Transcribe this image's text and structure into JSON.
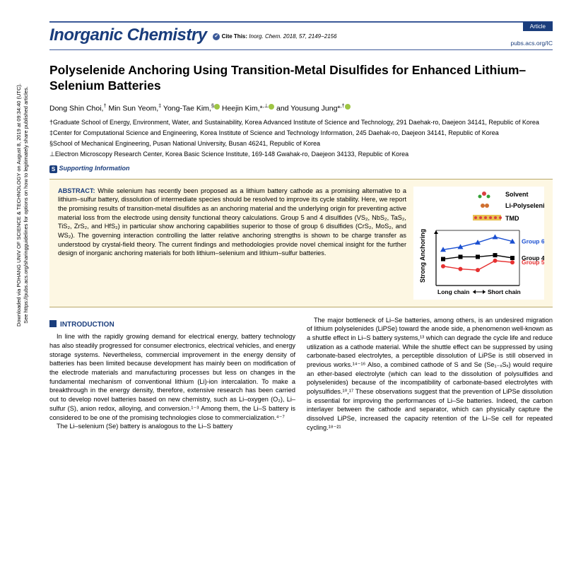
{
  "sidebar": {
    "line1": "Downloaded via POHANG UNIV OF SCIENCE & TECHNOLOGY on August 8, 2019 at 09:34:40 (UTC).",
    "line2": "See https://pubs.acs.org/sharingguidelines for options on how to legitimately share published articles."
  },
  "header": {
    "journal": "Inorganic Chemistry",
    "cite_label": "Cite This:",
    "cite_ref": "Inorg. Chem. 2018, 57, 2149−2156",
    "badge": "Article",
    "pubs_link": "pubs.acs.org/IC"
  },
  "title": "Polyselenide Anchoring Using Transition-Metal Disulfides for Enhanced Lithium–Selenium Batteries",
  "authors": "Dong Shin Choi,† Min Sun Yeom,‡ Yong-Tae Kim,§ Heejin Kim,*,⊥ and Yousung Jung*,†",
  "affiliations": [
    "†Graduate School of Energy, Environment, Water, and Sustainability, Korea Advanced Institute of Science and Technology, 291 Daehak-ro, Daejeon 34141, Republic of Korea",
    "‡Center for Computational Science and Engineering, Korea Institute of Science and Technology Information, 245 Daehak-ro, Daejeon 34141, Republic of Korea",
    "§School of Mechanical Engineering, Pusan National University, Busan 46241, Republic of Korea",
    "⊥Electron Microscopy Research Center, Korea Basic Science Institute, 169-148 Gwahak-ro, Daejeon 34133, Republic of Korea"
  ],
  "support_label": "Supporting Information",
  "abstract": {
    "label": "ABSTRACT:",
    "body": "While selenium has recently been proposed as a lithium battery cathode as a promising alternative to a lithium–sulfur battery, dissolution of intermediate species should be resolved to improve its cycle stability. Here, we report the promising results of transition-metal disulfides as an anchoring material and the underlying origin for preventing active material loss from the electrode using density functional theory calculations. Group 5 and 4 disulfides (VS₂, NbS₂, TaS₂, TiS₂, ZrS₂, and HfS₂) in particular show anchoring capabilities superior to those of group 6 disulfides (CrS₂, MoS₂, and WS₂). The governing interaction controlling the latter relative anchoring strengths is shown to be charge transfer as understood by crystal-field theory. The current findings and methodologies provide novel chemical insight for the further design of inorganic anchoring materials for both lithium–selenium and lithium–sulfur batteries."
  },
  "figure": {
    "legend": [
      "Solvent",
      "Li-Polyselenide",
      "TMD"
    ],
    "ylabel": "Strong Anchoring",
    "xlabel_left": "Long chain",
    "xlabel_right": "Short chain",
    "series": [
      {
        "name": "Group 6",
        "color": "#1a4fd1",
        "marker": "triangle",
        "y": [
          0.65,
          0.7,
          0.78,
          0.88,
          0.8
        ]
      },
      {
        "name": "Group 4",
        "color": "#000000",
        "marker": "square",
        "y": [
          0.48,
          0.52,
          0.52,
          0.55,
          0.5
        ]
      },
      {
        "name": "Group 5",
        "color": "#e63030",
        "marker": "circle",
        "y": [
          0.35,
          0.3,
          0.28,
          0.45,
          0.42
        ]
      }
    ],
    "xlim": [
      0,
      4
    ],
    "ylim": [
      0,
      1
    ]
  },
  "intro_heading": "INTRODUCTION",
  "body": {
    "left": [
      "In line with the rapidly growing demand for electrical energy, battery technology has also steadily progressed for consumer electronics, electrical vehicles, and energy storage systems. Nevertheless, commercial improvement in the energy density of batteries has been limited because development has mainly been on modification of the electrode materials and manufacturing processes but less on changes in the fundamental mechanism of conventional lithium (Li)-ion intercalation. To make a breakthrough in the energy density, therefore, extensive research has been carried out to develop novel batteries based on new chemistry, such as Li–oxygen (O₂), Li–sulfur (S), anion redox, alloying, and conversion.¹⁻³ Among them, the Li–S battery is considered to be one of the promising technologies close to commercialization.⁴⁻⁷",
      "The Li–selenium (Se) battery is analogous to the Li–S battery"
    ],
    "right": [
      "The major bottleneck of Li–Se batteries, among others, is an undesired migration of lithium polyselenides (LiPSe) toward the anode side, a phenomenon well-known as a shuttle effect in Li–S battery systems,¹³ which can degrade the cycle life and reduce utilization as a cathode material. While the shuttle effect can be suppressed by using carbonate-based electrolytes, a perceptible dissolution of LiPSe is still observed in previous works.¹⁴⁻¹⁶ Also, a combined cathode of S and Se (Se₁₋ₓSₓ) would require an ether-based electrolyte (which can lead to the dissolution of polysulfides and polyselenides) because of the incompatibility of carbonate-based electrolytes with polysulfides.¹⁰,¹⁷ These observations suggest that the prevention of LiPSe dissolution is essential for improving the performances of Li–Se batteries. Indeed, the carbon interlayer between the cathode and separator, which can physically capture the dissolved LiPSe, increased the capacity retention of the Li–Se cell for repeated cycling.¹⁸⁻²¹"
    ]
  }
}
